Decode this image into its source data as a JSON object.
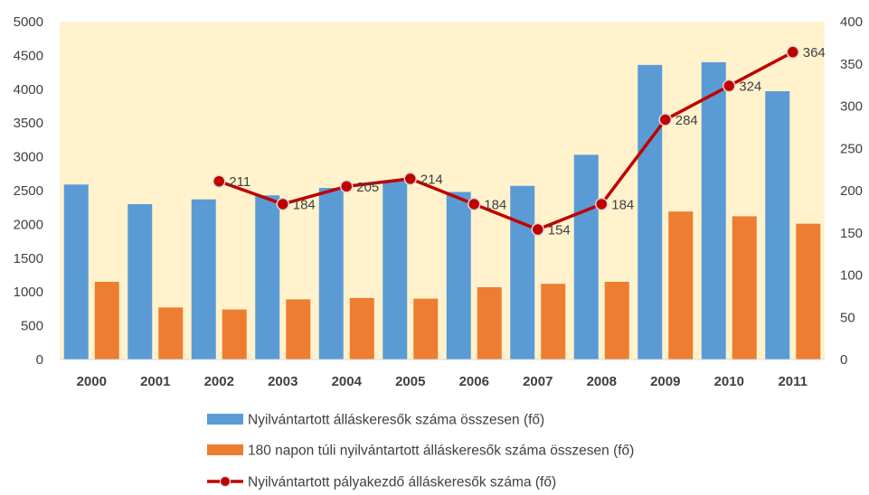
{
  "chart_data": {
    "type": "bar",
    "categories": [
      "2000",
      "2001",
      "2002",
      "2003",
      "2004",
      "2005",
      "2006",
      "2007",
      "2008",
      "2009",
      "2010",
      "2011"
    ],
    "series": [
      {
        "name": "Nyilvántartott álláskeresők száma összesen (fő)",
        "type": "bar",
        "axis": "left",
        "color": "#5B9BD5",
        "values": [
          2590,
          2300,
          2370,
          2430,
          2540,
          2650,
          2480,
          2570,
          3030,
          4360,
          4400,
          3970
        ]
      },
      {
        "name": "180 napon túli nyilvántartott álláskeresők száma összesen (fő)",
        "type": "bar",
        "axis": "left",
        "color": "#ED7D31",
        "values": [
          1150,
          770,
          740,
          890,
          910,
          900,
          1070,
          1120,
          1150,
          2190,
          2120,
          2010
        ]
      },
      {
        "name": "Nyilvántartott pályakezdő álláskeresők száma (fő)",
        "type": "line",
        "axis": "right",
        "color": "#C00000",
        "values": [
          null,
          null,
          211,
          184,
          205,
          214,
          184,
          154,
          184,
          284,
          324,
          364
        ],
        "labels": [
          "",
          "",
          "211",
          "184",
          "205",
          "214",
          "184",
          "154",
          "184",
          "284",
          "324",
          "364"
        ]
      }
    ],
    "y_left": {
      "min": 0,
      "max": 5000,
      "ticks": [
        "0",
        "500",
        "1000",
        "1500",
        "2000",
        "2500",
        "3000",
        "3500",
        "4000",
        "4500",
        "5000"
      ]
    },
    "y_right": {
      "min": 0,
      "max": 400,
      "ticks": [
        "0",
        "50",
        "100",
        "150",
        "200",
        "250",
        "300",
        "350",
        "400"
      ]
    },
    "plot_background": "#FFF2CC",
    "grid": false,
    "legend_position": "bottom"
  }
}
